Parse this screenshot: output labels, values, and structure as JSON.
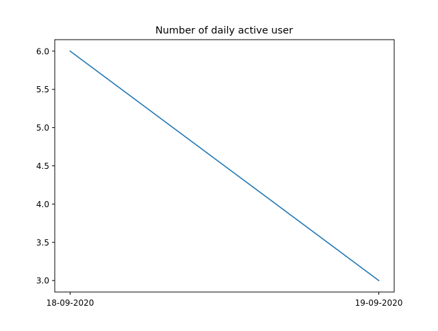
{
  "chart_data": {
    "type": "line",
    "title": "Number of daily active user",
    "xlabel": "",
    "ylabel": "",
    "x": [
      "18-09-2020",
      "19-09-2020"
    ],
    "series": [
      {
        "values": [
          6.0,
          3.0
        ],
        "color": "#1f77b4"
      }
    ],
    "ylim": [
      2.85,
      6.15
    ],
    "yticks": [
      "6.0",
      "5.5",
      "5.0",
      "4.5",
      "4.0",
      "3.5",
      "3.0"
    ],
    "grid": false,
    "legend": "none"
  }
}
